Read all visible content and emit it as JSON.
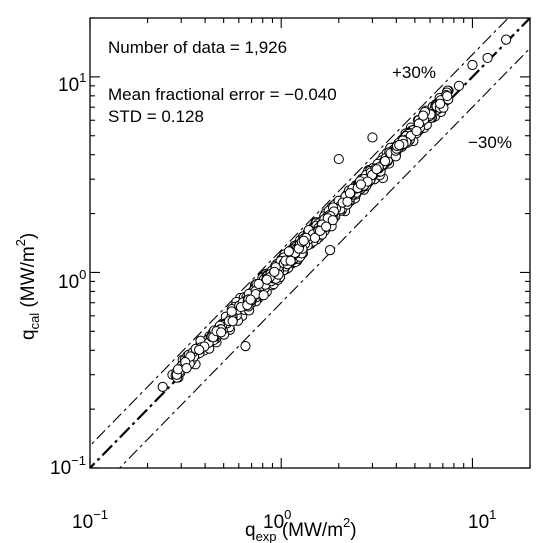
{
  "chart_data": {
    "type": "scatter",
    "x_scale": "log",
    "y_scale": "log",
    "xlim": [
      0.1,
      20
    ],
    "ylim": [
      0.1,
      20
    ],
    "xlabel": {
      "base": "q",
      "sub": "exp",
      "unit_pre": " (MW/m",
      "sup": "2",
      "unit_post": ")"
    },
    "ylabel": {
      "base": "q",
      "sub": "cal",
      "unit_pre": " (MW/m",
      "sup": "2",
      "unit_post": ")"
    },
    "x_ticks": [
      {
        "value": 0.1,
        "base": "10",
        "exp": "−1"
      },
      {
        "value": 1,
        "base": "10",
        "exp": "0"
      },
      {
        "value": 10,
        "base": "10",
        "exp": "1"
      }
    ],
    "y_ticks": [
      {
        "value": 0.1,
        "base": "10",
        "exp": "−1"
      },
      {
        "value": 1,
        "base": "10",
        "exp": "0"
      },
      {
        "value": 10,
        "base": "10",
        "exp": "1"
      }
    ],
    "annotations": {
      "n_data": "Number of data = 1,926",
      "mean_error": "Mean fractional error = −0.040",
      "std": "STD = 0.128",
      "plus30": "+30%",
      "minus30": "−30%"
    },
    "reference_lines": [
      {
        "label": "+30%",
        "factor": 1.3,
        "style": "dash-dot"
      },
      {
        "label": "",
        "factor": 1.0,
        "style": "dash-dot-bold"
      },
      {
        "label": "−30%",
        "factor": 0.7,
        "style": "dash-dot"
      }
    ],
    "points_sample": [
      [
        0.24,
        0.26
      ],
      [
        0.27,
        0.3
      ],
      [
        0.29,
        0.29
      ],
      [
        0.3,
        0.33
      ],
      [
        0.33,
        0.36
      ],
      [
        0.36,
        0.38
      ],
      [
        0.38,
        0.42
      ],
      [
        0.4,
        0.44
      ],
      [
        0.43,
        0.46
      ],
      [
        0.46,
        0.5
      ],
      [
        0.5,
        0.54
      ],
      [
        0.55,
        0.58
      ],
      [
        0.58,
        0.62
      ],
      [
        0.62,
        0.66
      ],
      [
        0.65,
        0.72
      ],
      [
        0.7,
        0.76
      ],
      [
        0.75,
        0.82
      ],
      [
        0.8,
        0.9
      ],
      [
        0.85,
        0.95
      ],
      [
        0.9,
        1.0
      ],
      [
        1.0,
        1.1
      ],
      [
        1.1,
        1.2
      ],
      [
        1.2,
        1.35
      ],
      [
        1.3,
        1.4
      ],
      [
        1.4,
        1.55
      ],
      [
        1.5,
        1.7
      ],
      [
        1.7,
        1.9
      ],
      [
        1.85,
        2.1
      ],
      [
        2.0,
        2.2
      ],
      [
        2.2,
        2.4
      ],
      [
        2.4,
        2.6
      ],
      [
        2.6,
        2.9
      ],
      [
        2.8,
        3.1
      ],
      [
        3.0,
        3.2
      ],
      [
        3.3,
        3.5
      ],
      [
        3.6,
        3.9
      ],
      [
        4.0,
        4.2
      ],
      [
        4.5,
        4.9
      ],
      [
        5.0,
        5.4
      ],
      [
        5.5,
        6.0
      ],
      [
        6.0,
        6.5
      ],
      [
        6.5,
        7.2
      ],
      [
        7.0,
        7.8
      ],
      [
        7.5,
        8.5
      ],
      [
        8.5,
        9.0
      ],
      [
        10.0,
        11.5
      ],
      [
        12.0,
        12.5
      ],
      [
        15.0,
        15.5
      ],
      [
        2.0,
        3.8
      ],
      [
        3.0,
        4.9
      ],
      [
        0.65,
        0.42
      ],
      [
        1.8,
        1.3
      ]
    ]
  }
}
